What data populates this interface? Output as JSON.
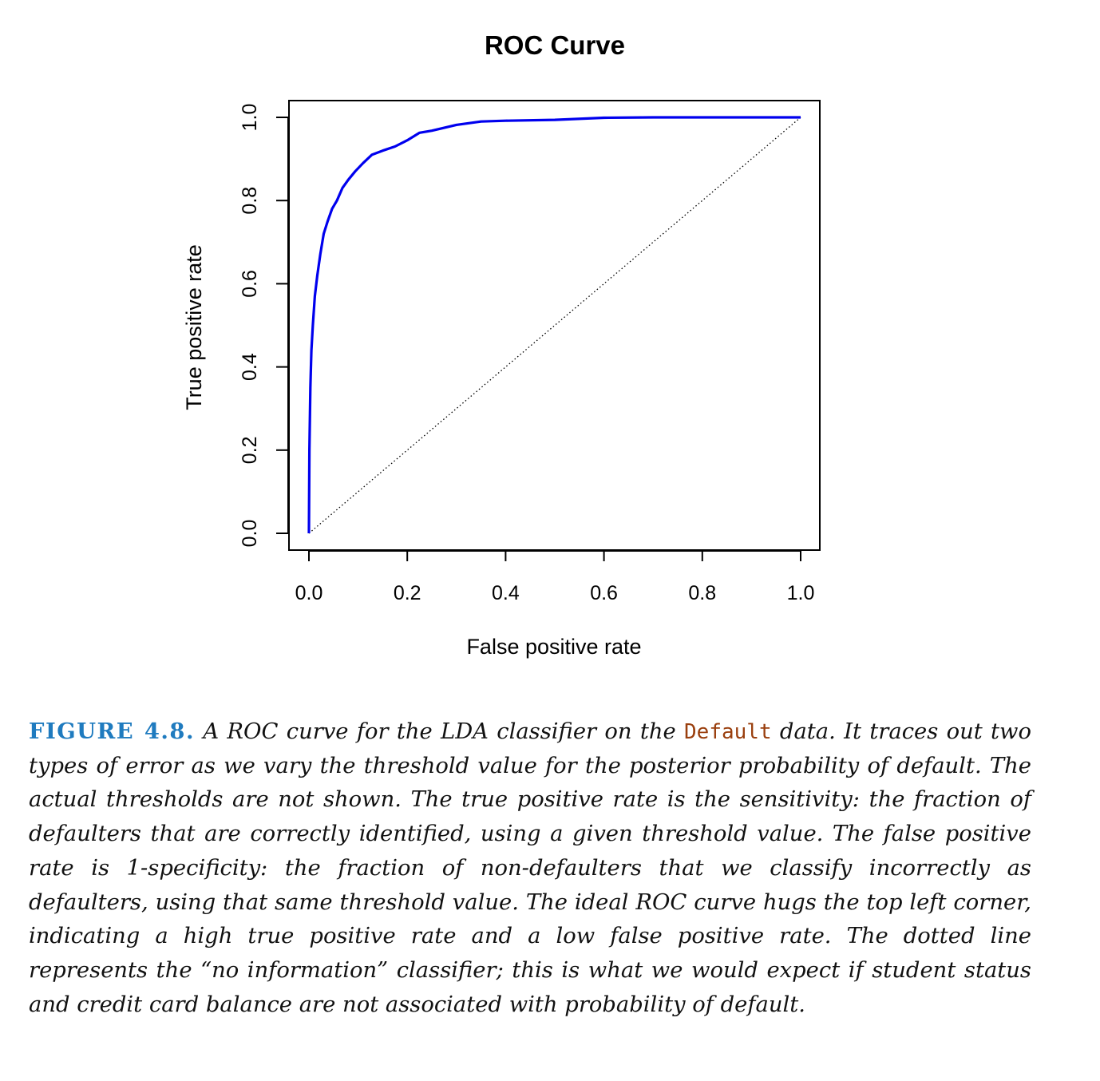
{
  "chart_data": {
    "type": "line",
    "title": "ROC Curve",
    "xlabel": "False positive rate",
    "ylabel": "True positive rate",
    "xlim": [
      0,
      1
    ],
    "ylim": [
      0,
      1
    ],
    "xticks": [
      "0.0",
      "0.2",
      "0.4",
      "0.6",
      "0.8",
      "1.0"
    ],
    "yticks": [
      "0.0",
      "0.2",
      "0.4",
      "0.6",
      "0.8",
      "1.0"
    ],
    "grid": false,
    "legend": "none",
    "series": [
      {
        "color": "#0000ee",
        "line": "solid",
        "x": [
          0.0,
          0.001,
          0.003,
          0.005,
          0.008,
          0.012,
          0.017,
          0.023,
          0.03,
          0.038,
          0.047,
          0.057,
          0.068,
          0.08,
          0.094,
          0.11,
          0.128,
          0.15,
          0.175,
          0.2,
          0.225,
          0.25,
          0.3,
          0.35,
          0.4,
          0.5,
          0.6,
          0.7,
          0.8,
          0.9,
          1.0
        ],
        "y": [
          0.0,
          0.2,
          0.35,
          0.44,
          0.5,
          0.57,
          0.62,
          0.67,
          0.72,
          0.75,
          0.78,
          0.8,
          0.83,
          0.85,
          0.87,
          0.89,
          0.91,
          0.92,
          0.93,
          0.945,
          0.963,
          0.968,
          0.982,
          0.99,
          0.992,
          0.994,
          0.999,
          1.0,
          1.0,
          1.0,
          1.0
        ]
      },
      {
        "color": "#000000",
        "line": "dotted",
        "x": [
          0,
          1
        ],
        "y": [
          0,
          1
        ]
      }
    ]
  },
  "caption": {
    "label": "FIGURE 4.8.",
    "text_before": " A ROC curve for the LDA classifier on the ",
    "dataset": "Default",
    "text_after": " data. It traces out two types of error as we vary the threshold value for the posterior probability of default. The actual thresholds are not shown. The true positive rate is the sensitivity: the fraction of defaulters that are correctly identified, using a given threshold value. The false positive rate is 1-specificity: the fraction of non-defaulters that we classify incorrectly as defaulters, using that same threshold value. The ideal ROC curve hugs the top left corner, indicating a high true positive rate and a low false positive rate. The dotted line represents the “no information” classifier; this is what we would expect if student status and credit card balance are not associated with probability of default."
  }
}
